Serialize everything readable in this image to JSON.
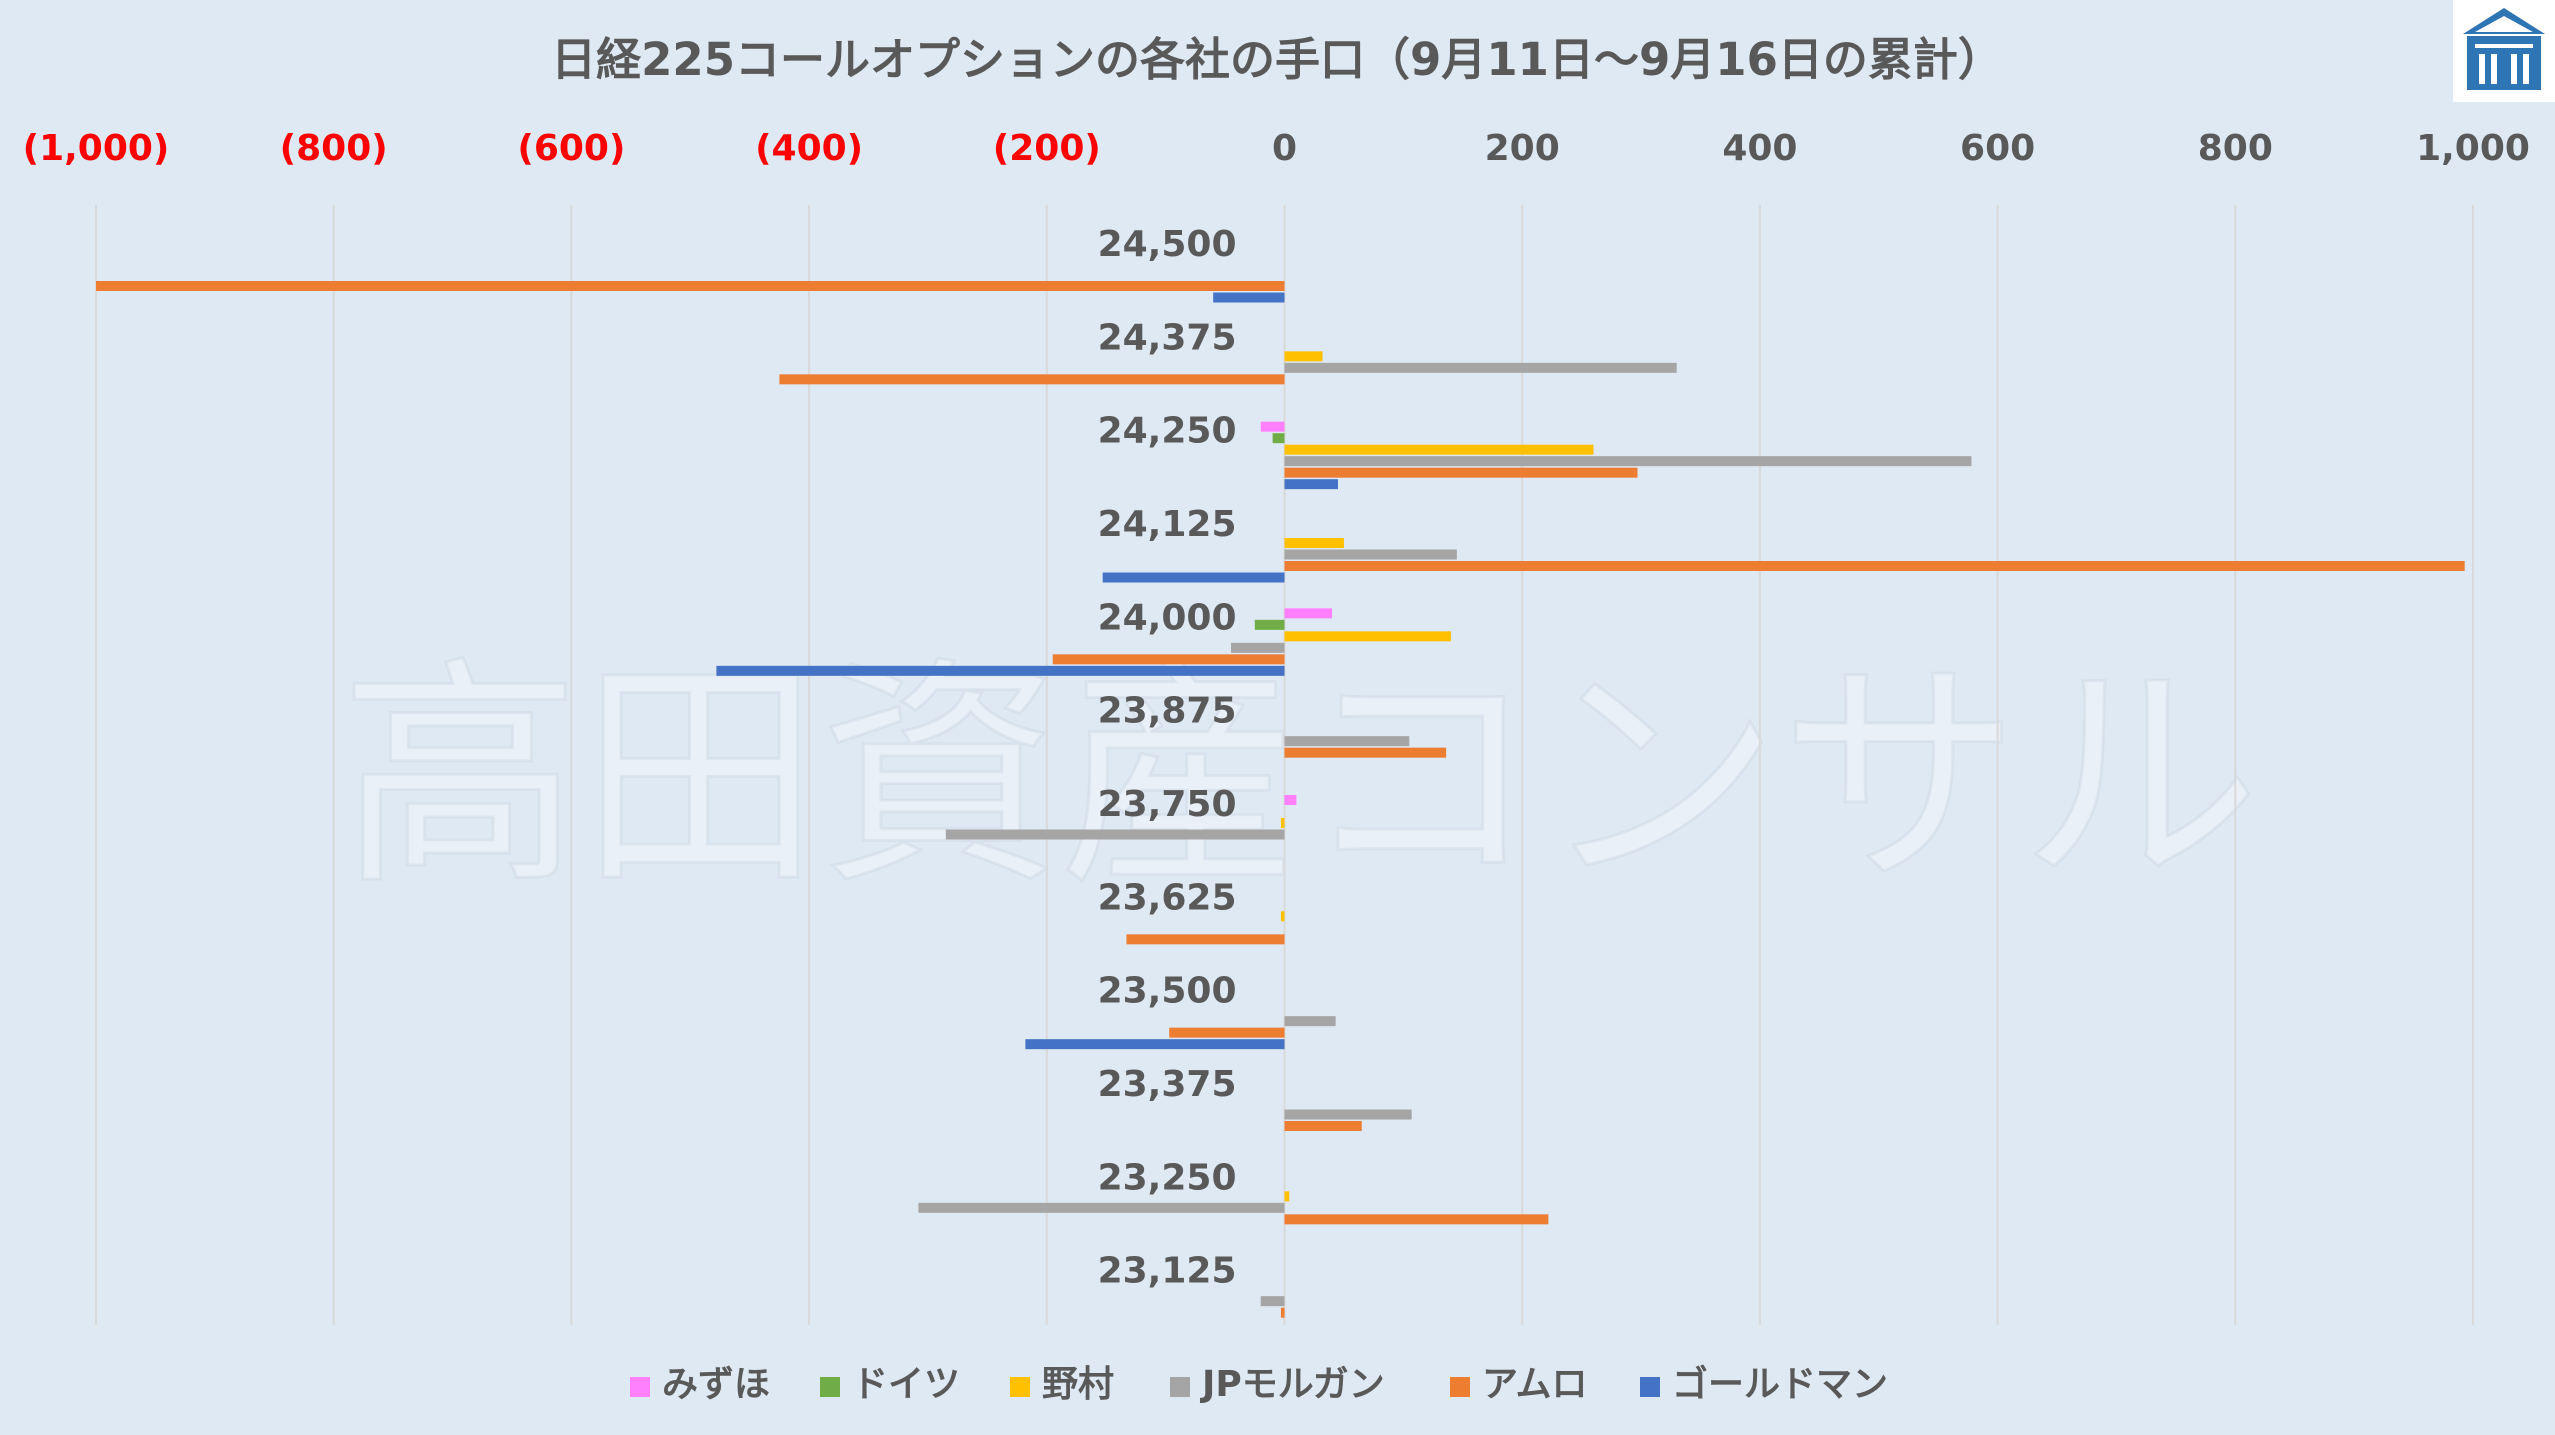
{
  "title": "日経225コールオプションの各社の手口（9月11日～9月16日の累計）",
  "watermark": "高田資産コンサル",
  "logo": {
    "icon": "bank-building-icon",
    "color": "#2e75b6"
  },
  "chart_data": {
    "type": "bar",
    "orientation": "horizontal",
    "title": "日経225コールオプションの各社の手口（9月11日～9月16日の累計）",
    "xlabel": "",
    "ylabel": "",
    "xlim": [
      -1000,
      1000
    ],
    "x_ticks": [
      -1000,
      -800,
      -600,
      -400,
      -200,
      0,
      200,
      400,
      600,
      800,
      1000
    ],
    "x_tick_labels": [
      "(1,000)",
      "(800)",
      "(600)",
      "(400)",
      "(200)",
      "0",
      "200",
      "400",
      "600",
      "800",
      "1,000"
    ],
    "negative_tick_color": "#ff0000",
    "positive_tick_color": "#595959",
    "grid": "vertical",
    "legend_position": "bottom",
    "categories": [
      "24,500",
      "24,375",
      "24,250",
      "24,125",
      "24,000",
      "23,875",
      "23,750",
      "23,625",
      "23,500",
      "23,375",
      "23,250",
      "23,125"
    ],
    "series": [
      {
        "name": "みずほ",
        "color": "#ff80ff",
        "values": [
          0,
          0,
          -20,
          0,
          40,
          0,
          10,
          0,
          0,
          0,
          0,
          0
        ]
      },
      {
        "name": "ドイツ",
        "color": "#70ad47",
        "values": [
          0,
          0,
          -10,
          0,
          -25,
          0,
          0,
          0,
          0,
          0,
          0,
          0
        ]
      },
      {
        "name": "野村",
        "color": "#ffc000",
        "values": [
          0,
          32,
          260,
          50,
          140,
          0,
          -3,
          -3,
          0,
          0,
          4,
          0
        ]
      },
      {
        "name": "JPモルガン",
        "color": "#a5a5a5",
        "values": [
          0,
          330,
          578,
          145,
          -45,
          105,
          -285,
          0,
          43,
          107,
          -308,
          -20
        ]
      },
      {
        "name": "アムロ",
        "color": "#ed7d31",
        "values": [
          -1000,
          -425,
          297,
          993,
          -195,
          136,
          0,
          -133,
          -97,
          65,
          222,
          -3
        ]
      },
      {
        "name": "ゴールドマン",
        "color": "#4472c4",
        "values": [
          -60,
          0,
          45,
          -153,
          -478,
          0,
          0,
          0,
          -218,
          0,
          0,
          0
        ]
      }
    ]
  }
}
